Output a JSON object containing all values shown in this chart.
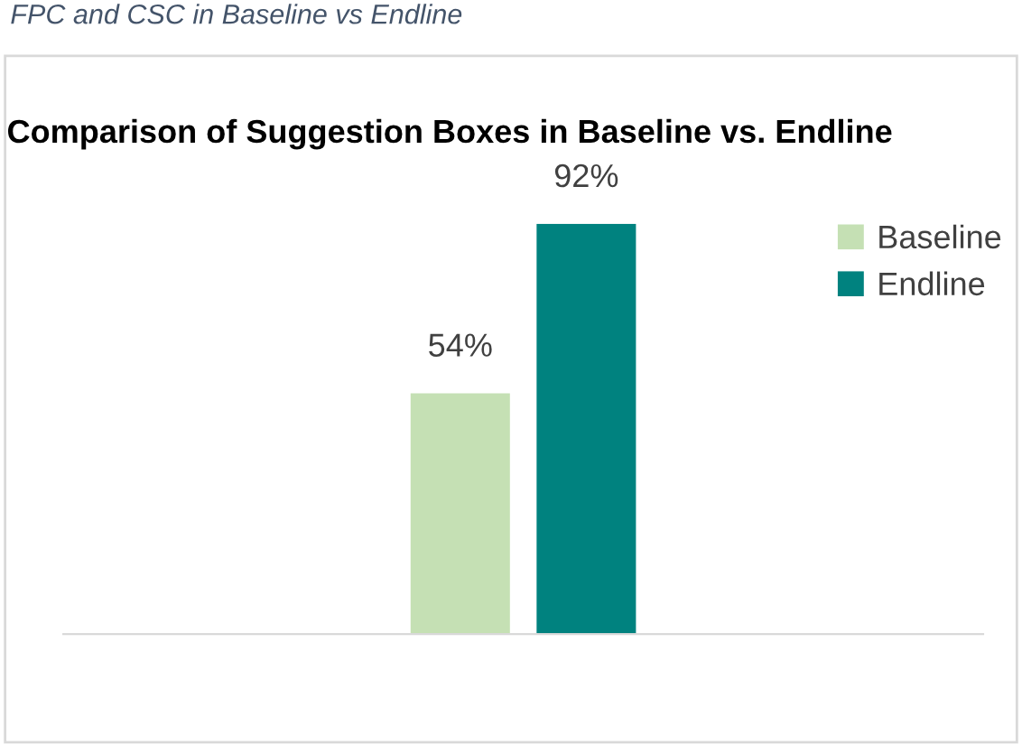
{
  "chart_data": {
    "type": "bar",
    "title": "Comparison of Suggestion Boxes in Baseline vs. Endline",
    "annotations": [
      "FPC and CSC in Baseline vs Endline"
    ],
    "categories": [
      null
    ],
    "series": [
      {
        "name": "Baseline",
        "color": "#c5e0b4",
        "values": [
          54
        ],
        "value_labels": [
          "54%"
        ]
      },
      {
        "name": "Endline",
        "color": "#00827f",
        "values": [
          92
        ],
        "value_labels": [
          "92%"
        ]
      }
    ],
    "legend": "top right",
    "tick_labels": false
  }
}
